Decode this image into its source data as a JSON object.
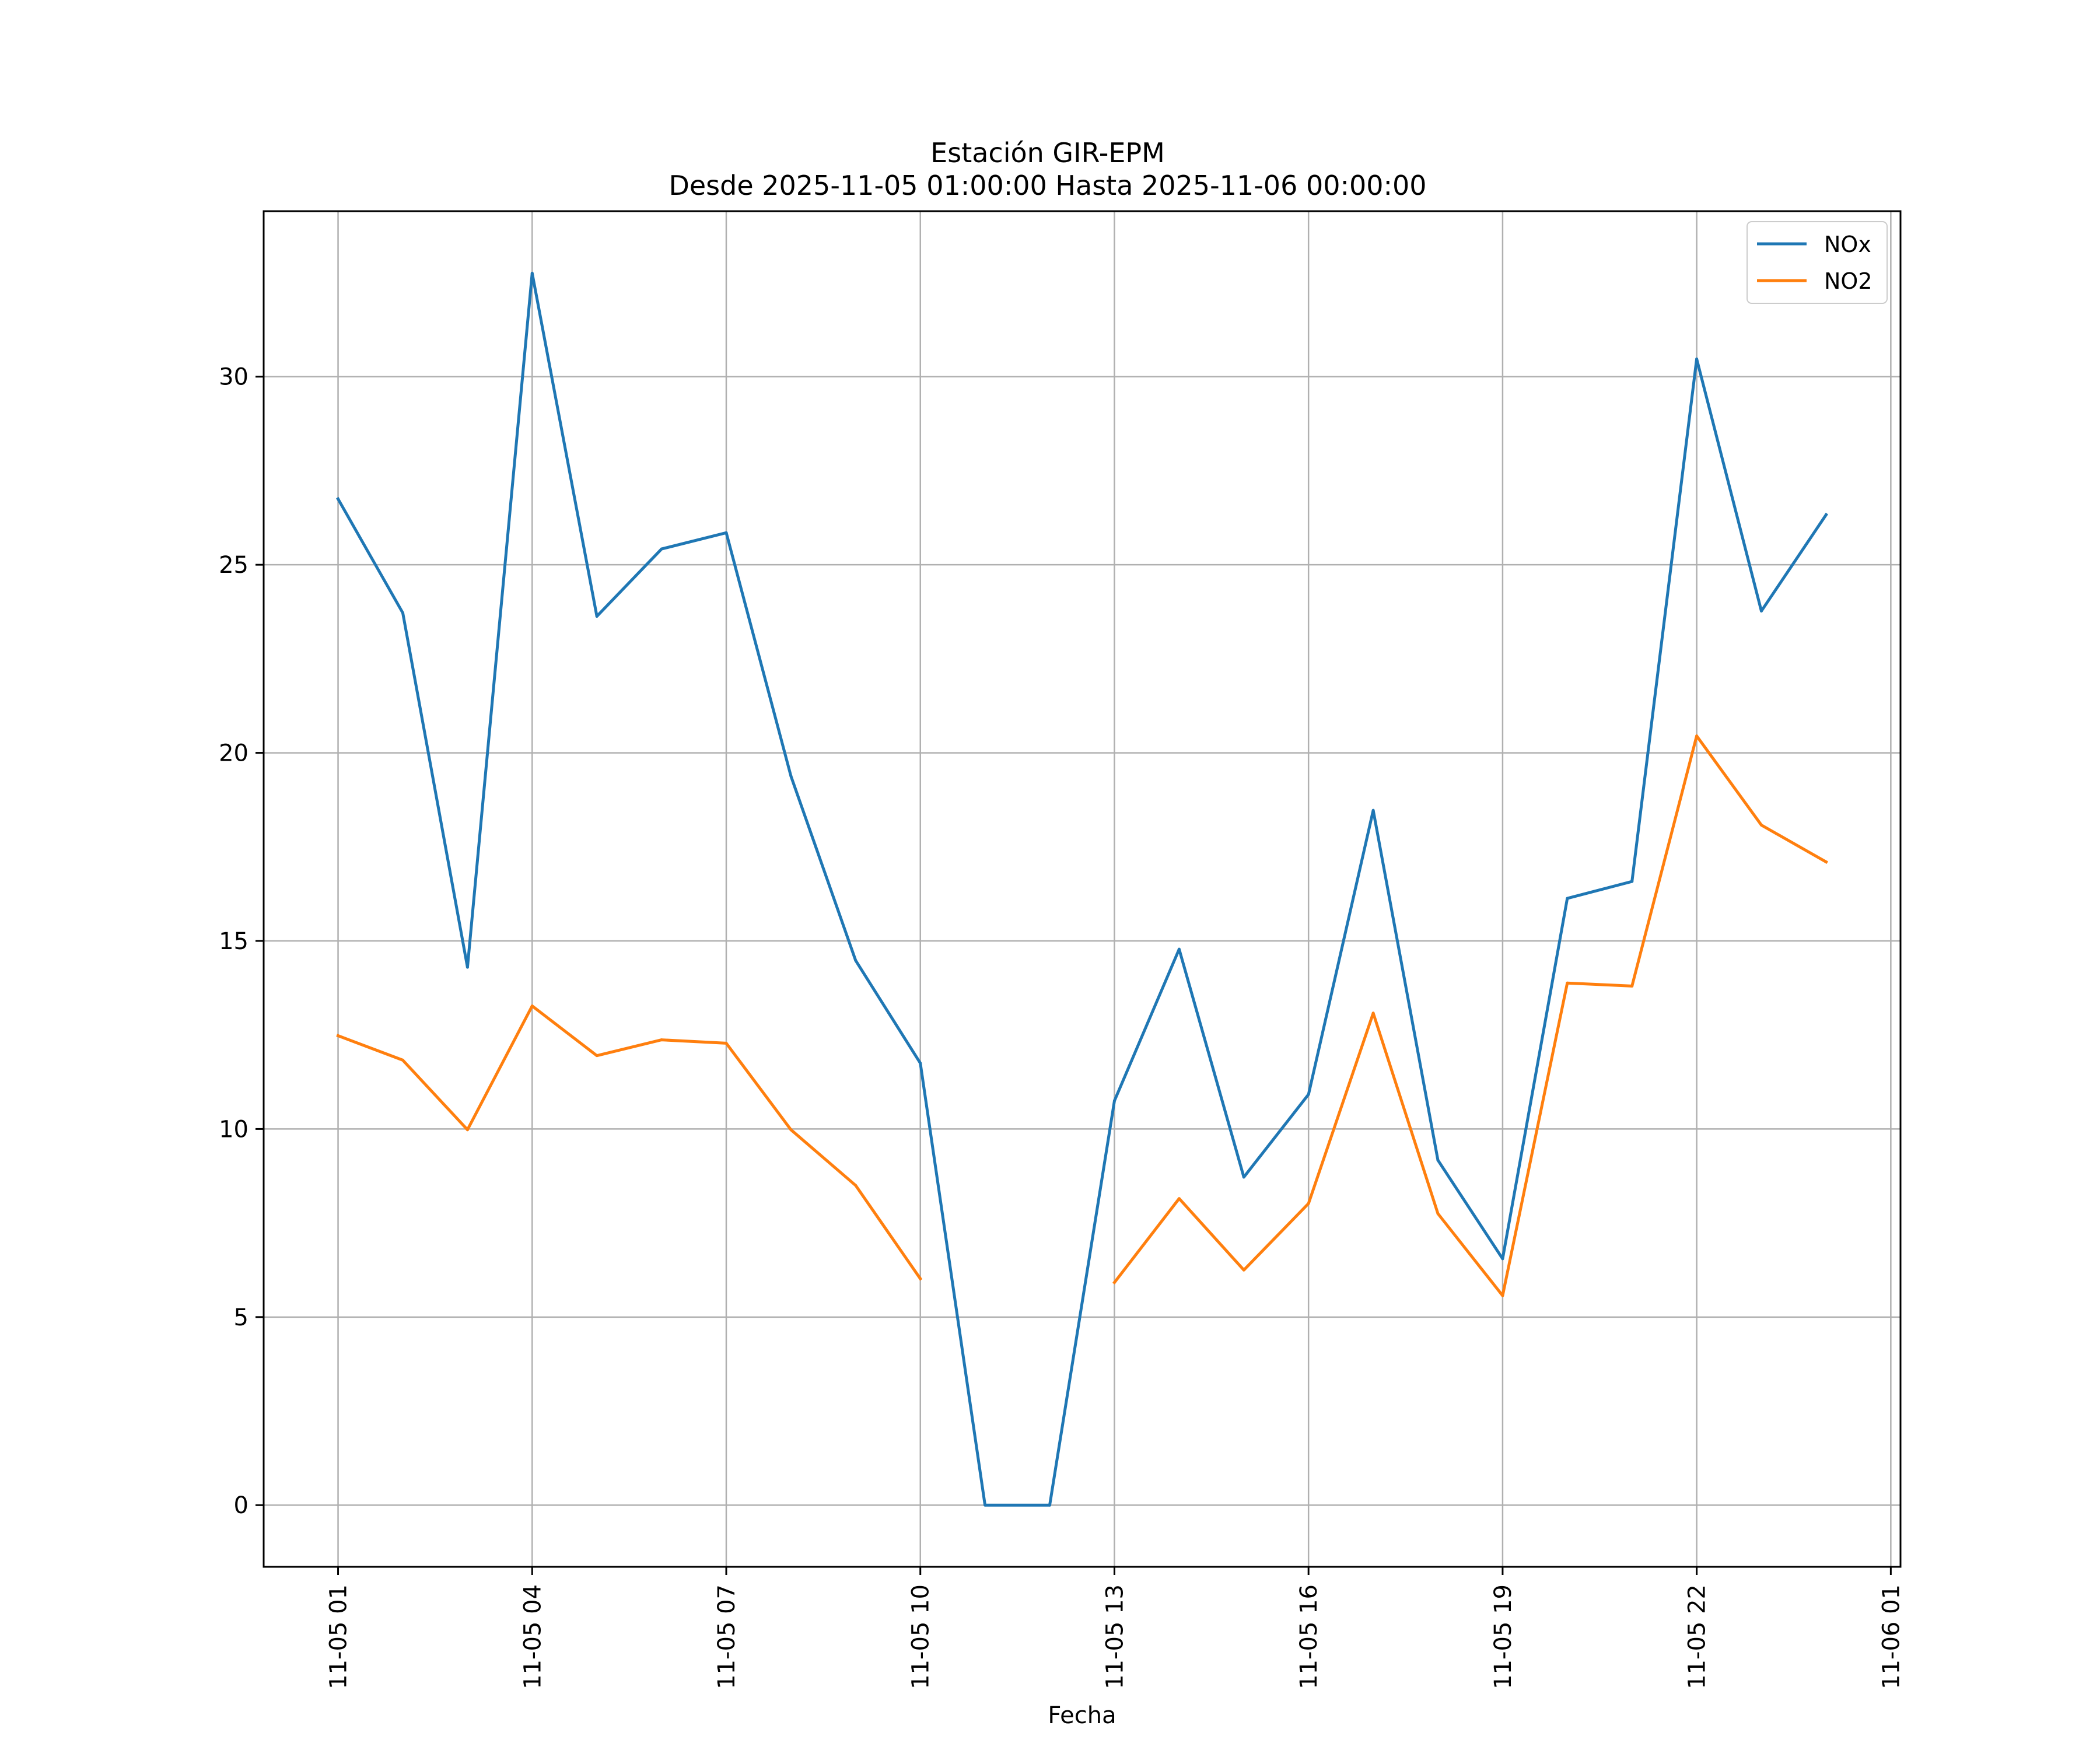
{
  "chart_data": {
    "type": "line",
    "title": "Estación GIR-EPM",
    "subtitle": "Desde 2025-11-05 01:00:00 Hasta 2025-11-06 00:00:00",
    "xlabel": "Fecha",
    "ylabel": "",
    "x": [
      "11-05 01",
      "11-05 02",
      "11-05 03",
      "11-05 04",
      "11-05 05",
      "11-05 06",
      "11-05 07",
      "11-05 08",
      "11-05 09",
      "11-05 10",
      "11-05 11",
      "11-05 12",
      "11-05 13",
      "11-05 14",
      "11-05 15",
      "11-05 16",
      "11-05 17",
      "11-05 18",
      "11-05 19",
      "11-05 20",
      "11-05 21",
      "11-05 22",
      "11-05 23",
      "11-06 00"
    ],
    "xticks": [
      "11-05 01",
      "11-05 04",
      "11-05 07",
      "11-05 10",
      "11-05 13",
      "11-05 16",
      "11-05 19",
      "11-05 22",
      "11-06 01"
    ],
    "xlim": [
      "11-04 23:51",
      "11-06 01:09"
    ],
    "yticks": [
      0,
      5,
      10,
      15,
      20,
      25,
      30
    ],
    "ylim": [
      -1.64,
      34.4
    ],
    "grid": true,
    "legend_position": "top-right",
    "series": [
      {
        "name": "NOx",
        "color": "#1f77b4",
        "values": [
          26.75,
          23.72,
          14.3,
          32.75,
          23.63,
          25.42,
          25.85,
          19.38,
          14.48,
          11.75,
          0.0,
          0.0,
          10.75,
          14.78,
          8.72,
          10.92,
          18.47,
          9.17,
          6.55,
          16.13,
          16.58,
          30.47,
          23.77,
          26.33
        ]
      },
      {
        "name": "NO2",
        "color": "#ff7f0e",
        "values": [
          12.48,
          11.83,
          9.98,
          13.27,
          11.95,
          12.37,
          12.28,
          9.98,
          8.5,
          6.02,
          null,
          null,
          5.92,
          8.15,
          6.25,
          8.02,
          13.08,
          7.75,
          5.57,
          13.88,
          13.8,
          20.45,
          18.08,
          17.1
        ]
      }
    ]
  }
}
